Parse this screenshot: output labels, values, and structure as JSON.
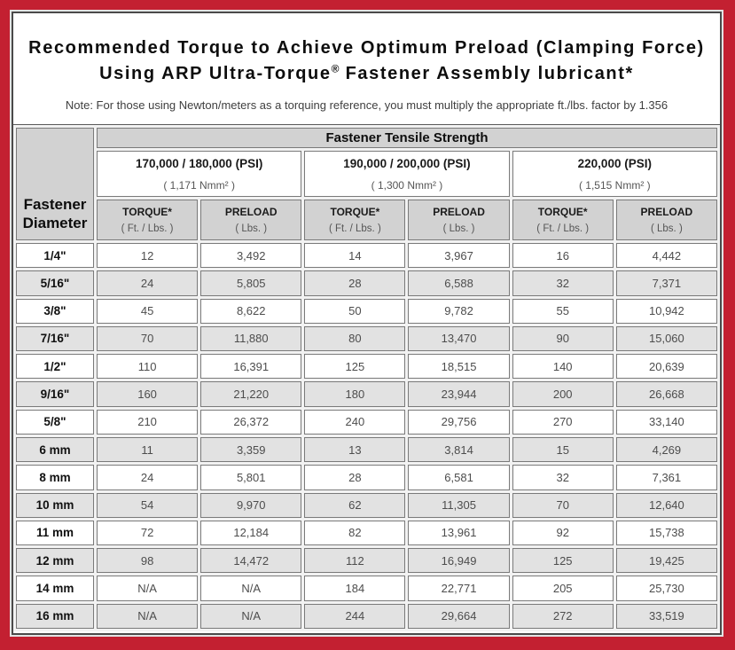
{
  "colors": {
    "frame_red": "#c32031",
    "inner_outline": "#4a4a4a",
    "header_gray": "#d2d2d2",
    "row_shade_gray": "#e2e2e2",
    "cell_border_gray": "#7a7a7a",
    "value_text_gray": "#4d4d4d"
  },
  "title": {
    "line1": "Recommended Torque to Achieve Optimum Preload (Clamping Force)",
    "line2_pre": "Using ARP Ultra-Torque",
    "line2_reg": "®",
    "line2_post": " Fastener Assembly lubricant*",
    "note": "Note: For those using Newton/meters as a torquing reference, you must multiply the appropriate ft./lbs. factor by 1.356"
  },
  "table": {
    "corner_header": "Fastener Diameter",
    "tensile_header": "Fastener Tensile Strength",
    "groups": [
      {
        "psi": "170,000 / 180,000 (PSI)",
        "nmm": "( 1,171 Nmm² )"
      },
      {
        "psi": "190,000 / 200,000 (PSI)",
        "nmm": "( 1,300 Nmm² )"
      },
      {
        "psi": "220,000 (PSI)",
        "nmm": "( 1,515 Nmm² )"
      }
    ],
    "col_headers": {
      "torque": "TORQUE*",
      "torque_unit": "( Ft. / Lbs. )",
      "preload": "PRELOAD",
      "preload_unit": "( Lbs. )"
    },
    "rows": [
      [
        "1/4\"",
        "12",
        "3,492",
        "14",
        "3,967",
        "16",
        "4,442"
      ],
      [
        "5/16\"",
        "24",
        "5,805",
        "28",
        "6,588",
        "32",
        "7,371"
      ],
      [
        "3/8\"",
        "45",
        "8,622",
        "50",
        "9,782",
        "55",
        "10,942"
      ],
      [
        "7/16\"",
        "70",
        "11,880",
        "80",
        "13,470",
        "90",
        "15,060"
      ],
      [
        "1/2\"",
        "110",
        "16,391",
        "125",
        "18,515",
        "140",
        "20,639"
      ],
      [
        "9/16\"",
        "160",
        "21,220",
        "180",
        "23,944",
        "200",
        "26,668"
      ],
      [
        "5/8\"",
        "210",
        "26,372",
        "240",
        "29,756",
        "270",
        "33,140"
      ],
      [
        "6 mm",
        "11",
        "3,359",
        "13",
        "3,814",
        "15",
        "4,269"
      ],
      [
        "8 mm",
        "24",
        "5,801",
        "28",
        "6,581",
        "32",
        "7,361"
      ],
      [
        "10 mm",
        "54",
        "9,970",
        "62",
        "11,305",
        "70",
        "12,640"
      ],
      [
        "11 mm",
        "72",
        "12,184",
        "82",
        "13,961",
        "92",
        "15,738"
      ],
      [
        "12 mm",
        "98",
        "14,472",
        "112",
        "16,949",
        "125",
        "19,425"
      ],
      [
        "14 mm",
        "N/A",
        "N/A",
        "184",
        "22,771",
        "205",
        "25,730"
      ],
      [
        "16 mm",
        "N/A",
        "N/A",
        "244",
        "29,664",
        "272",
        "33,519"
      ]
    ]
  }
}
